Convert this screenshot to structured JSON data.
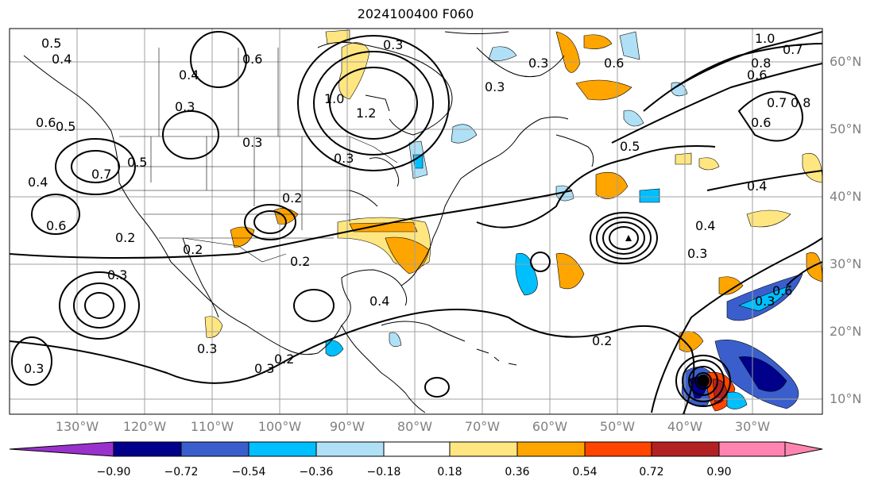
{
  "title": "2024100400 F060",
  "map": {
    "lon_labels": [
      "130°W",
      "120°W",
      "110°W",
      "100°W",
      "90°W",
      "80°W",
      "70°W",
      "60°W",
      "50°W",
      "40°W",
      "30°W"
    ],
    "lat_labels": [
      "60°N",
      "50°N",
      "40°N",
      "30°N",
      "20°N",
      "10°N"
    ],
    "contour_labels": [
      "0.5",
      "0.4",
      "0.6",
      "0.5",
      "0.4",
      "0.3",
      "0.3",
      "0.6",
      "0.7",
      "0.5",
      "0.4",
      "0.6",
      "0.2",
      "0.3",
      "0.3",
      "0.2",
      "0.3",
      "0.2",
      "0.3",
      "1.2",
      "1.0",
      "0.3",
      "0.2",
      "0.4",
      "0.2",
      "0.3",
      "0.5",
      "0.4",
      "0.3",
      "0.4",
      "0.2",
      "0.3",
      "0.6",
      "1.0",
      "0.8",
      "0.7",
      "0.6",
      "0.7",
      "0.8",
      "0.6",
      "0.3",
      "0.3",
      "0.6"
    ],
    "colors": {
      "contour": "#000000",
      "land": "#000000",
      "grid": "#a0a0a0"
    }
  },
  "colorbar": {
    "ticks": [
      "−0.90",
      "−0.72",
      "−0.54",
      "−0.36",
      "−0.18",
      "0.18",
      "0.36",
      "0.54",
      "0.72",
      "0.90"
    ],
    "colors": [
      "#9932cc",
      "#00008b",
      "#3a5fcd",
      "#00bfff",
      "#b0e0f6",
      "#ffffff",
      "#ffe680",
      "#ffa500",
      "#ff4500",
      "#b22222",
      "#ff85b0"
    ]
  }
}
